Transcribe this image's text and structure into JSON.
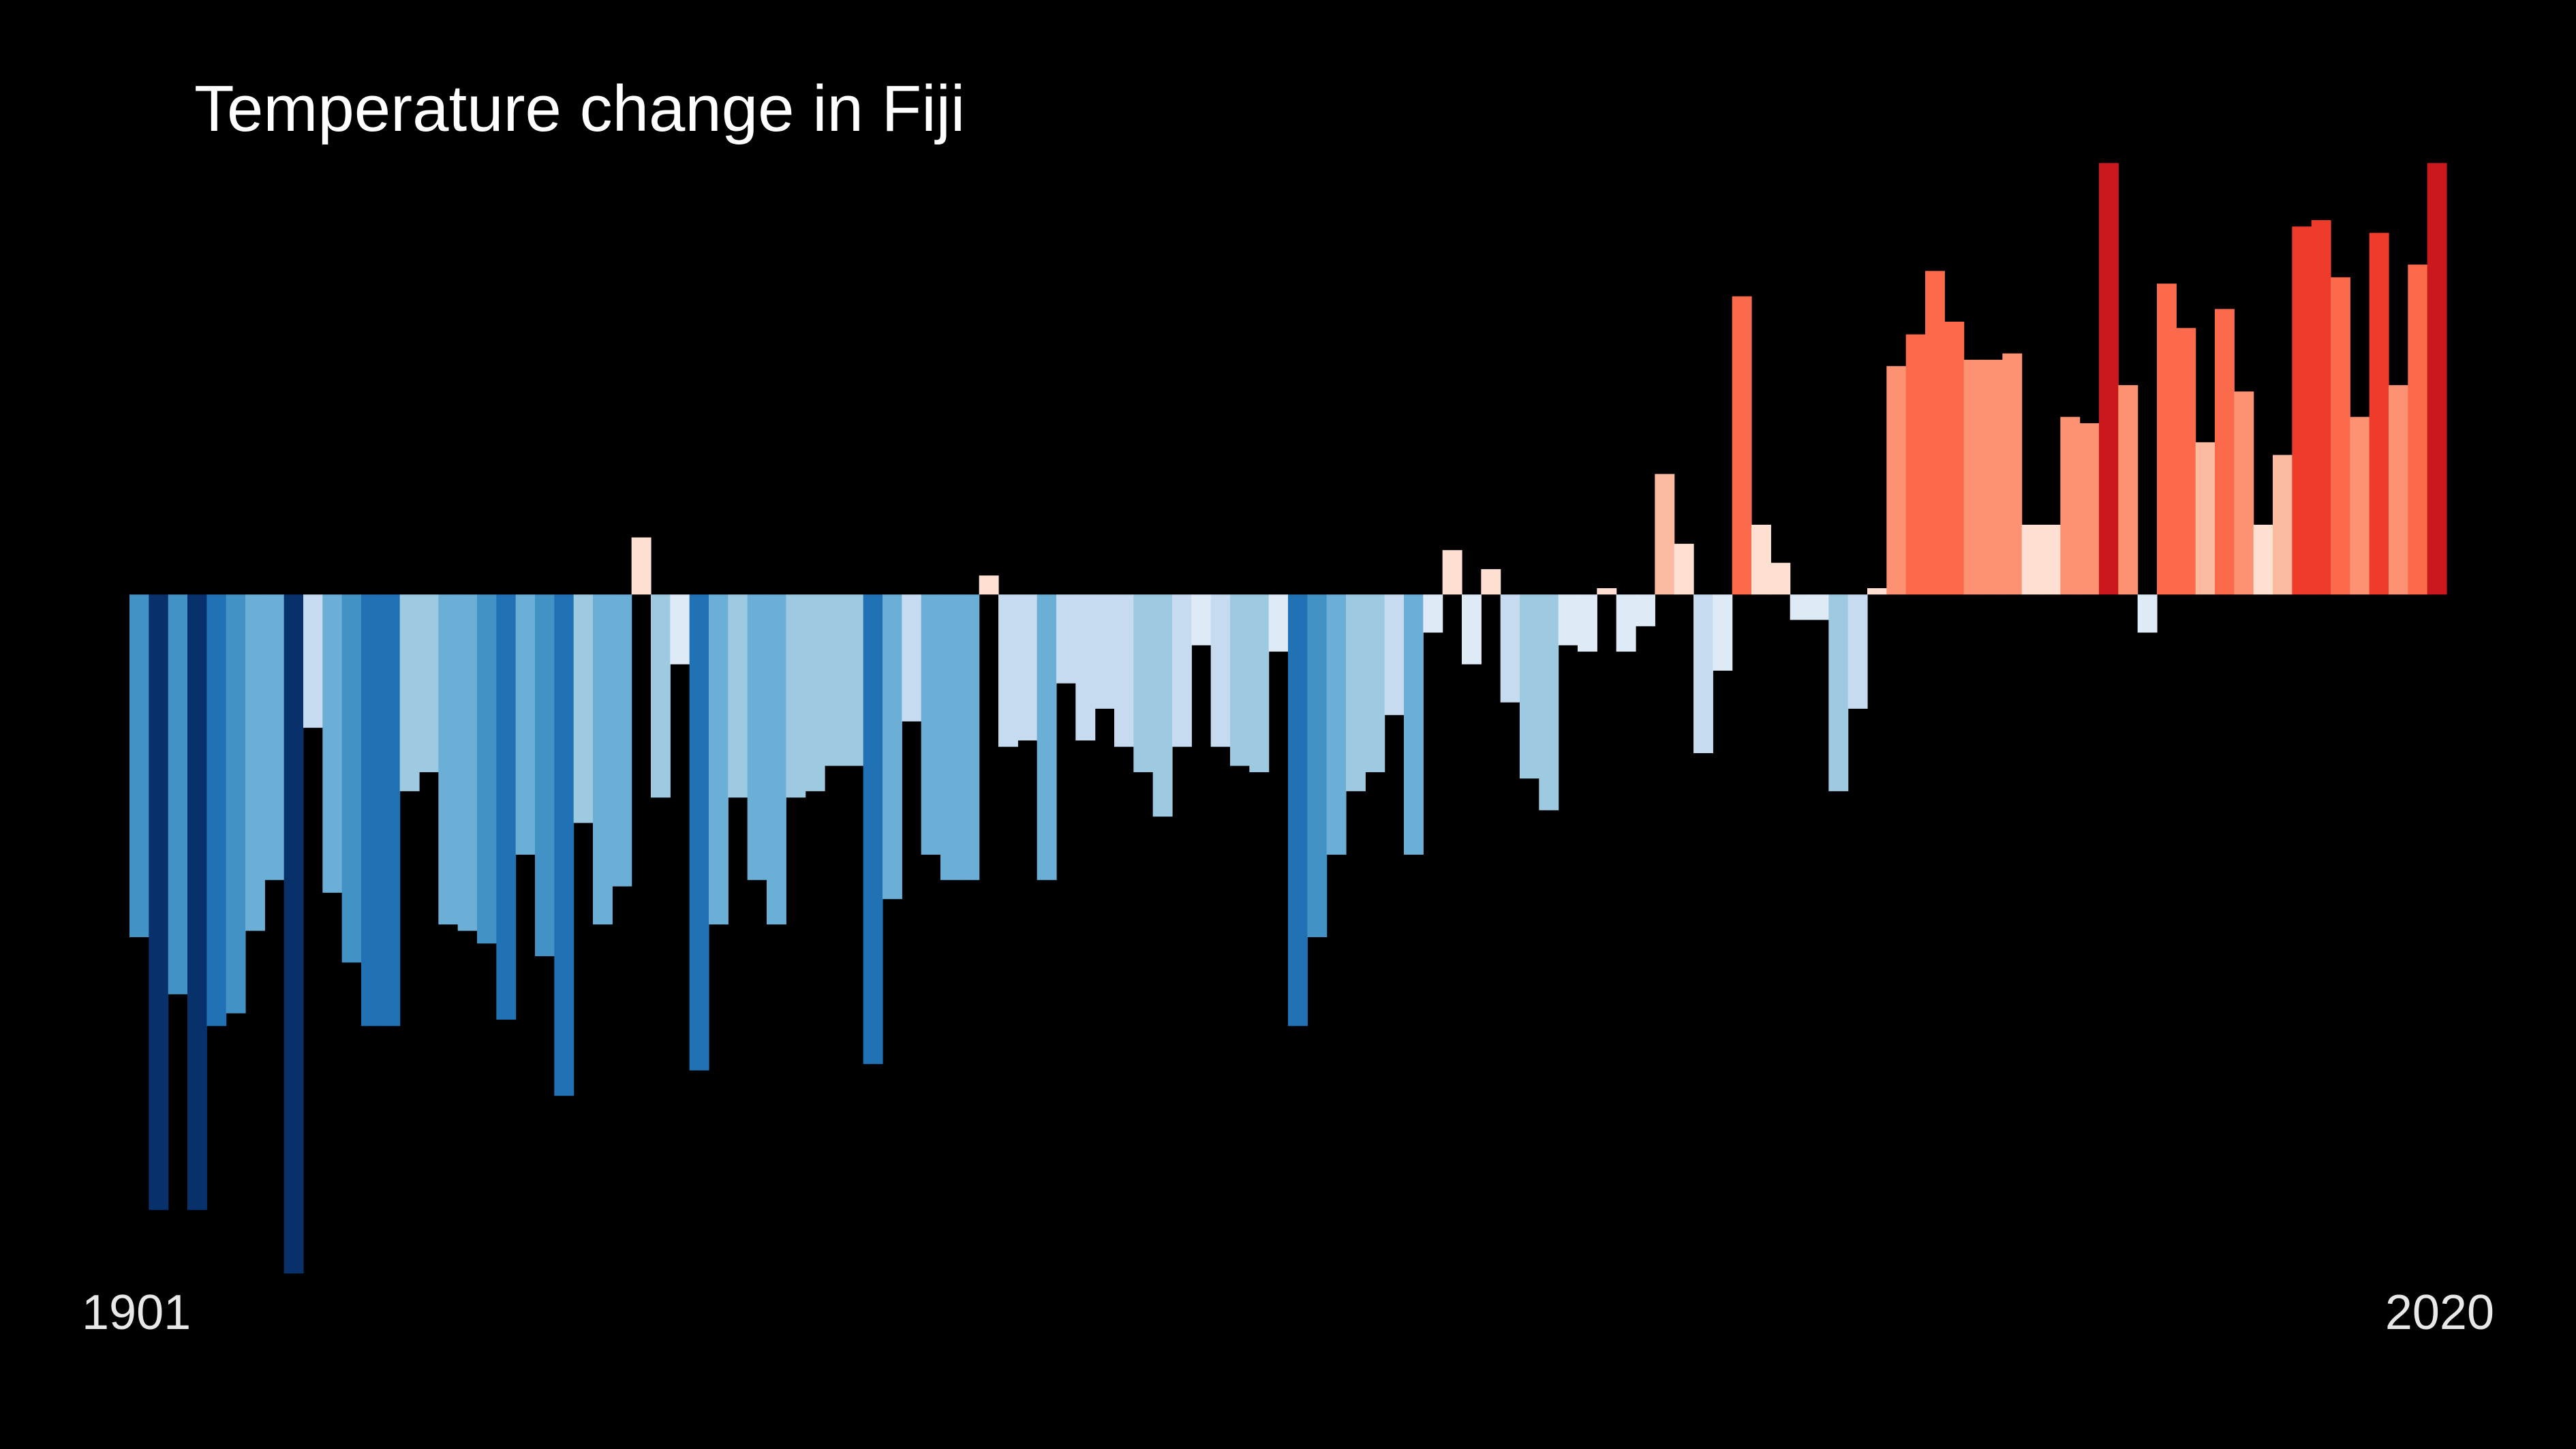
{
  "chart_data": {
    "type": "bar",
    "title": "Temperature change in Fiji",
    "xlabel": "",
    "ylabel": "",
    "x_start_label": "1901",
    "x_end_label": "2020",
    "categories": [
      1901,
      1902,
      1903,
      1904,
      1905,
      1906,
      1907,
      1908,
      1909,
      1910,
      1911,
      1912,
      1913,
      1914,
      1915,
      1916,
      1917,
      1918,
      1919,
      1920,
      1921,
      1922,
      1923,
      1924,
      1925,
      1926,
      1927,
      1928,
      1929,
      1930,
      1931,
      1932,
      1933,
      1934,
      1935,
      1936,
      1937,
      1938,
      1939,
      1940,
      1941,
      1942,
      1943,
      1944,
      1945,
      1946,
      1947,
      1948,
      1949,
      1950,
      1951,
      1952,
      1953,
      1954,
      1955,
      1956,
      1957,
      1958,
      1959,
      1960,
      1961,
      1962,
      1963,
      1964,
      1965,
      1966,
      1967,
      1968,
      1969,
      1970,
      1971,
      1972,
      1973,
      1974,
      1975,
      1976,
      1977,
      1978,
      1979,
      1980,
      1981,
      1982,
      1983,
      1984,
      1985,
      1986,
      1987,
      1988,
      1989,
      1990,
      1991,
      1992,
      1993,
      1994,
      1995,
      1996,
      1997,
      1998,
      1999,
      2000,
      2001,
      2002,
      2003,
      2004,
      2005,
      2006,
      2007,
      2008,
      2009,
      2010,
      2011,
      2012,
      2013,
      2014,
      2015,
      2016,
      2017,
      2018,
      2019,
      2020
    ],
    "values": [
      -0.54,
      -0.97,
      -0.63,
      -0.97,
      -0.68,
      -0.66,
      -0.53,
      -0.45,
      -1.07,
      -0.21,
      -0.47,
      -0.58,
      -0.68,
      -0.68,
      -0.31,
      -0.28,
      -0.52,
      -0.53,
      -0.55,
      -0.67,
      -0.41,
      -0.57,
      -0.79,
      -0.36,
      -0.52,
      -0.46,
      0.09,
      -0.32,
      -0.11,
      -0.75,
      -0.52,
      -0.32,
      -0.45,
      -0.52,
      -0.32,
      -0.31,
      -0.27,
      -0.27,
      -0.74,
      -0.48,
      -0.2,
      -0.41,
      -0.45,
      -0.45,
      0.03,
      -0.24,
      -0.23,
      -0.45,
      -0.14,
      -0.23,
      -0.18,
      -0.24,
      -0.28,
      -0.35,
      -0.24,
      -0.08,
      -0.24,
      -0.27,
      -0.28,
      -0.09,
      -0.68,
      -0.54,
      -0.41,
      -0.31,
      -0.28,
      -0.19,
      -0.41,
      -0.06,
      0.07,
      -0.11,
      0.04,
      -0.17,
      -0.29,
      -0.34,
      -0.08,
      -0.09,
      0.01,
      -0.09,
      -0.05,
      0.19,
      0.08,
      -0.25,
      -0.12,
      0.47,
      0.11,
      0.05,
      -0.04,
      -0.04,
      -0.31,
      -0.18,
      0.01,
      0.36,
      0.41,
      0.51,
      0.43,
      0.37,
      0.37,
      0.38,
      0.11,
      0.11,
      0.28,
      0.27,
      0.68,
      0.33,
      -0.06,
      0.49,
      0.42,
      0.24,
      0.45,
      0.32,
      0.11,
      0.22,
      0.58,
      0.59,
      0.5,
      0.28,
      0.57,
      0.33,
      0.52,
      0.68
    ],
    "ylim": [
      -1.12,
      0.72
    ],
    "colorscale": [
      "#08306b",
      "#08519c",
      "#2171b5",
      "#4292c6",
      "#6baed6",
      "#9ecae1",
      "#c6dbef",
      "#deebf7",
      "#fee0d2",
      "#fcbba1",
      "#fc9272",
      "#fb6a4a",
      "#ef3b2c",
      "#cb181d",
      "#a50f15",
      "#67000d"
    ],
    "background": "#000000",
    "grid": false,
    "legend": "none"
  }
}
